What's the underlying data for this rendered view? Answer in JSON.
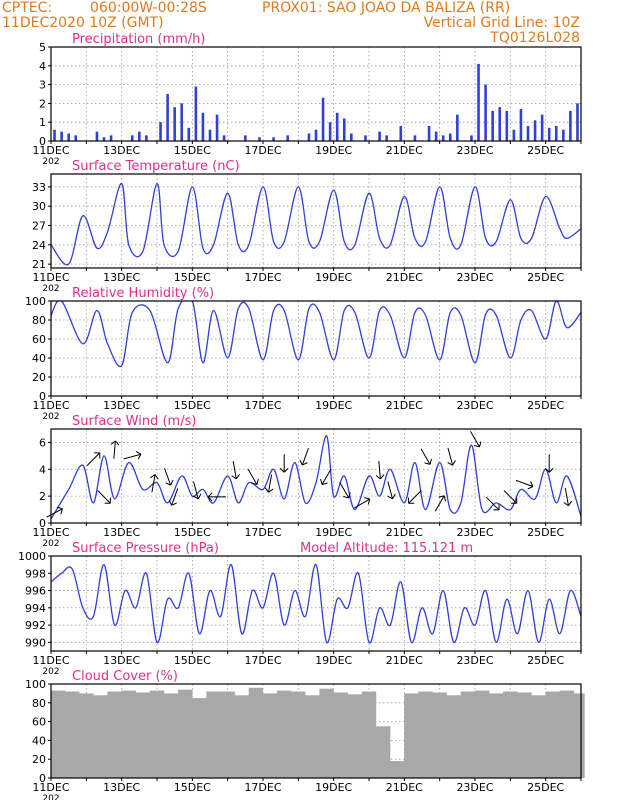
{
  "header": {
    "source": "CPTEC:",
    "coords": "060:00W-00:28S",
    "station": "PROX01: SAO JOAO DA BALIZA (RR)",
    "datetime": "11DEC2020 10Z (GMT)",
    "grid_note": "Vertical Grid Line: 10Z",
    "model_code": "TQ0126L028"
  },
  "model_altitude": "Model Altitude: 115.121 m",
  "x_axis": {
    "ticks": [
      "11DEC",
      "13DEC",
      "15DEC",
      "17DEC",
      "19DEC",
      "21DEC",
      "23DEC",
      "25DEC"
    ],
    "stub": "202",
    "xlim_days": [
      11,
      26
    ]
  },
  "colors": {
    "header": "#e07a20",
    "title": "#e0308a",
    "series": "#3040d8",
    "cloud": "#a8a8a8",
    "arrow": "#000000",
    "grid": "#9a9a9a"
  },
  "chart_data": [
    {
      "type": "bar",
      "title": "Precipitation (mm/h)",
      "ylim": [
        0,
        5
      ],
      "yticks": [
        "0",
        "1",
        "2",
        "3",
        "4",
        "5"
      ],
      "x": [
        11.1,
        11.3,
        11.5,
        11.7,
        12.3,
        12.5,
        12.7,
        13.3,
        13.5,
        13.7,
        14.1,
        14.3,
        14.5,
        14.7,
        14.9,
        15.1,
        15.3,
        15.5,
        15.7,
        15.9,
        16.5,
        16.9,
        17.3,
        17.7,
        18.3,
        18.5,
        18.7,
        18.9,
        19.1,
        19.3,
        19.5,
        19.9,
        20.3,
        20.5,
        20.9,
        21.3,
        21.7,
        21.9,
        22.1,
        22.3,
        22.5,
        22.9,
        23.1,
        23.3,
        23.5,
        23.7,
        23.9,
        24.1,
        24.3,
        24.5,
        24.7,
        24.9,
        25.1,
        25.3,
        25.5,
        25.7,
        25.9
      ],
      "values": [
        0.6,
        0.5,
        0.4,
        0.3,
        0.5,
        0.2,
        0.3,
        0.3,
        0.5,
        0.3,
        1.0,
        2.5,
        1.8,
        2.0,
        0.7,
        2.9,
        1.5,
        0.6,
        1.4,
        0.3,
        0.3,
        0.2,
        0.2,
        0.3,
        0.4,
        0.6,
        2.3,
        1.0,
        1.5,
        1.2,
        0.4,
        0.3,
        0.5,
        0.3,
        0.8,
        0.3,
        0.8,
        0.5,
        0.3,
        0.4,
        1.4,
        0.3,
        4.1,
        3.0,
        1.6,
        1.8,
        1.6,
        0.6,
        1.7,
        0.8,
        1.1,
        1.4,
        0.7,
        0.8,
        0.6,
        1.6,
        2.0
      ]
    },
    {
      "type": "line",
      "title": "Surface Temperature (nC)",
      "ylim": [
        20.4,
        35
      ],
      "yticks": [
        "21",
        "24",
        "27",
        "30",
        "33"
      ],
      "x": [
        11.0,
        11.5,
        11.9,
        12.3,
        12.6,
        13.0,
        13.2,
        13.6,
        14.0,
        14.2,
        14.6,
        15.0,
        15.3,
        15.6,
        16.0,
        16.3,
        16.6,
        17.0,
        17.3,
        17.6,
        18.0,
        18.3,
        18.6,
        19.0,
        19.3,
        19.6,
        20.0,
        20.3,
        20.6,
        21.0,
        21.3,
        21.6,
        22.0,
        22.3,
        22.6,
        23.0,
        23.3,
        23.6,
        24.0,
        24.3,
        24.6,
        25.0,
        25.4,
        25.6,
        26.0
      ],
      "y": [
        24.0,
        21.0,
        28.5,
        23.5,
        26.0,
        33.5,
        24.0,
        23.0,
        33.5,
        24.0,
        23.0,
        33.0,
        23.5,
        24.0,
        32.0,
        24.0,
        24.0,
        33.0,
        24.5,
        24.5,
        33.0,
        24.5,
        24.5,
        32.5,
        24.5,
        24.0,
        32.0,
        25.0,
        24.0,
        31.5,
        25.0,
        24.5,
        33.0,
        25.0,
        24.0,
        33.0,
        25.0,
        24.5,
        31.0,
        25.0,
        25.0,
        31.5,
        26.5,
        25.0,
        26.5
      ]
    },
    {
      "type": "line",
      "title": "Relative Humidity (%)",
      "ylim": [
        0,
        100
      ],
      "yticks": [
        "0",
        "20",
        "40",
        "60",
        "80",
        "100"
      ],
      "x": [
        11.0,
        11.3,
        11.9,
        12.3,
        12.6,
        13.0,
        13.3,
        13.8,
        14.3,
        14.6,
        15.0,
        15.3,
        15.6,
        16.0,
        16.3,
        16.6,
        17.0,
        17.3,
        17.6,
        18.0,
        18.3,
        18.6,
        19.0,
        19.3,
        19.6,
        20.0,
        20.3,
        20.6,
        21.0,
        21.3,
        21.6,
        22.0,
        22.3,
        22.6,
        23.0,
        23.3,
        23.6,
        24.0,
        24.3,
        24.6,
        25.0,
        25.3,
        25.6,
        26.0
      ],
      "y": [
        85,
        100,
        55,
        90,
        55,
        32,
        88,
        90,
        35,
        92,
        100,
        35,
        90,
        40,
        92,
        92,
        38,
        90,
        90,
        38,
        92,
        88,
        38,
        90,
        88,
        40,
        90,
        85,
        40,
        88,
        85,
        38,
        88,
        85,
        35,
        86,
        85,
        40,
        80,
        90,
        60,
        100,
        72,
        88
      ]
    },
    {
      "type": "line",
      "title": "Surface Wind (m/s)",
      "ylim": [
        0,
        7
      ],
      "yticks": [
        "0",
        "2",
        "4",
        "6"
      ],
      "x": [
        11.0,
        11.5,
        11.9,
        12.2,
        12.5,
        12.8,
        13.2,
        13.6,
        14.0,
        14.3,
        14.7,
        15.0,
        15.3,
        15.6,
        16.0,
        16.3,
        16.6,
        17.0,
        17.3,
        17.6,
        17.9,
        18.2,
        18.5,
        18.8,
        19.0,
        19.3,
        19.6,
        20.0,
        20.3,
        20.6,
        21.0,
        21.3,
        21.6,
        22.0,
        22.3,
        22.6,
        22.9,
        23.2,
        23.6,
        24.0,
        24.3,
        24.7,
        25.0,
        25.3,
        25.6,
        26.0
      ],
      "y": [
        0.3,
        2.5,
        4.3,
        1.5,
        5.0,
        1.8,
        4.5,
        2.5,
        3.0,
        1.5,
        3.5,
        2.0,
        2.5,
        1.5,
        3.5,
        1.5,
        3.0,
        2.5,
        4.0,
        1.8,
        4.5,
        1.5,
        3.0,
        6.5,
        2.0,
        3.5,
        1.0,
        3.5,
        2.0,
        4.0,
        1.5,
        4.5,
        1.0,
        4.5,
        1.0,
        1.5,
        5.8,
        1.0,
        1.5,
        1.0,
        2.5,
        1.8,
        4.0,
        1.5,
        3.5,
        0.5
      ],
      "arrows": [
        {
          "x": 11.1,
          "dir_deg": 62
        },
        {
          "x": 12.2,
          "dir_deg": 45
        },
        {
          "x": 12.5,
          "dir_deg": 135
        },
        {
          "x": 12.8,
          "dir_deg": 5
        },
        {
          "x": 13.3,
          "dir_deg": 75
        },
        {
          "x": 13.9,
          "dir_deg": 10
        },
        {
          "x": 14.3,
          "dir_deg": 160
        },
        {
          "x": 14.5,
          "dir_deg": 200
        },
        {
          "x": 15.1,
          "dir_deg": 165
        },
        {
          "x": 15.7,
          "dir_deg": 270
        },
        {
          "x": 16.2,
          "dir_deg": 170
        },
        {
          "x": 16.7,
          "dir_deg": 150
        },
        {
          "x": 17.2,
          "dir_deg": 190
        },
        {
          "x": 17.6,
          "dir_deg": 180
        },
        {
          "x": 18.2,
          "dir_deg": 200
        },
        {
          "x": 18.8,
          "dir_deg": 210
        },
        {
          "x": 19.3,
          "dir_deg": 150
        },
        {
          "x": 19.8,
          "dir_deg": 60
        },
        {
          "x": 20.3,
          "dir_deg": 175
        },
        {
          "x": 20.6,
          "dir_deg": 165
        },
        {
          "x": 21.3,
          "dir_deg": 225
        },
        {
          "x": 21.6,
          "dir_deg": 150
        },
        {
          "x": 22.0,
          "dir_deg": 30
        },
        {
          "x": 22.3,
          "dir_deg": 165
        },
        {
          "x": 23.0,
          "dir_deg": 150
        },
        {
          "x": 23.5,
          "dir_deg": 135
        },
        {
          "x": 24.0,
          "dir_deg": 135
        },
        {
          "x": 24.4,
          "dir_deg": 110
        },
        {
          "x": 25.1,
          "dir_deg": 180
        },
        {
          "x": 25.6,
          "dir_deg": 170
        }
      ]
    },
    {
      "type": "line",
      "title": "Surface Pressure (hPa)",
      "ylim": [
        989,
        1000
      ],
      "yticks": [
        "990",
        "992",
        "994",
        "996",
        "998",
        "1000"
      ],
      "x": [
        11.0,
        11.3,
        11.6,
        11.9,
        12.2,
        12.5,
        12.8,
        13.1,
        13.4,
        13.7,
        14.0,
        14.3,
        14.6,
        14.9,
        15.2,
        15.5,
        15.8,
        16.1,
        16.4,
        16.7,
        17.0,
        17.3,
        17.6,
        17.9,
        18.2,
        18.5,
        18.8,
        19.1,
        19.4,
        19.7,
        20.0,
        20.3,
        20.6,
        20.9,
        21.2,
        21.5,
        21.8,
        22.1,
        22.4,
        22.7,
        23.0,
        23.3,
        23.6,
        23.9,
        24.2,
        24.5,
        24.8,
        25.1,
        25.4,
        25.7,
        26.0
      ],
      "y": [
        997,
        998,
        998.5,
        994,
        993,
        999,
        992,
        996,
        994,
        998,
        990,
        995,
        994,
        998,
        991,
        996,
        993,
        999,
        991,
        996,
        994,
        998,
        992,
        996,
        993,
        999,
        990,
        995,
        994,
        998,
        990,
        994,
        992,
        997,
        990,
        994,
        991,
        996,
        990,
        994,
        992,
        996,
        990,
        995,
        991,
        996,
        990,
        995,
        991,
        996,
        993
      ]
    },
    {
      "type": "bar",
      "title": "Cloud Cover (%)",
      "ylim": [
        0,
        100
      ],
      "yticks": [
        "0",
        "20",
        "40",
        "60",
        "80",
        "100"
      ],
      "x": [
        11.2,
        11.6,
        12.0,
        12.4,
        12.8,
        13.2,
        13.6,
        14.0,
        14.4,
        14.8,
        15.2,
        15.6,
        16.0,
        16.4,
        16.8,
        17.2,
        17.6,
        18.0,
        18.4,
        18.8,
        19.2,
        19.6,
        20.0,
        20.4,
        20.8,
        21.2,
        21.6,
        22.0,
        22.4,
        22.8,
        23.2,
        23.6,
        24.0,
        24.4,
        24.8,
        25.2,
        25.6,
        25.9
      ],
      "values": [
        93,
        92,
        90,
        88,
        92,
        93,
        91,
        93,
        90,
        94,
        85,
        92,
        92,
        88,
        96,
        90,
        93,
        92,
        88,
        95,
        91,
        89,
        92,
        55,
        18,
        90,
        92,
        91,
        88,
        92,
        93,
        90,
        92,
        91,
        88,
        92,
        93,
        90
      ]
    }
  ]
}
